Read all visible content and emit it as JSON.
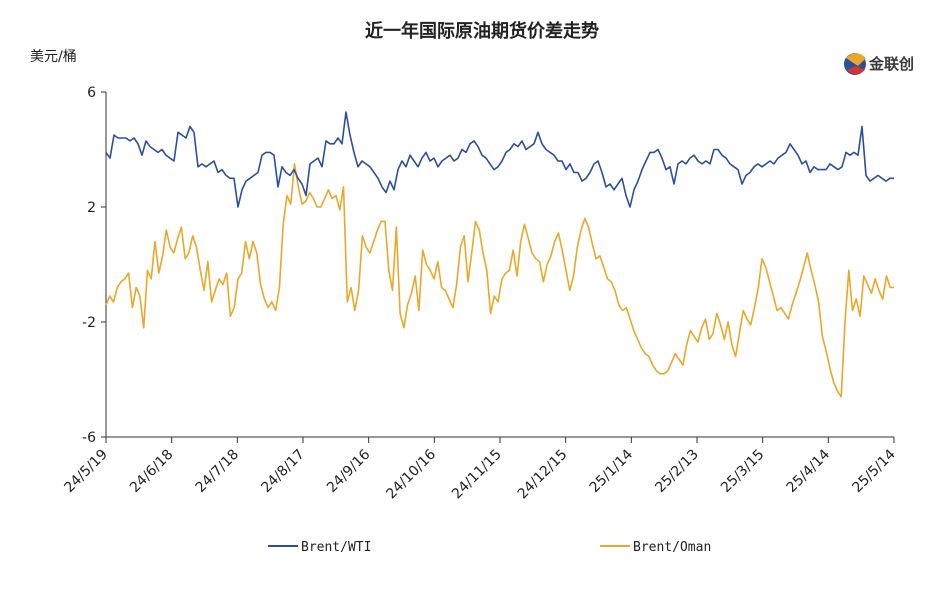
{
  "chart_data": {
    "type": "line",
    "title": "近一年国际原油期货价差走势",
    "ylabel": "美元/桶",
    "xlabel": "",
    "ylim": [
      -6,
      6
    ],
    "yticks": [
      "-6",
      "-2",
      "2",
      "6"
    ],
    "ytick_values": [
      -6,
      -2,
      2,
      6
    ],
    "x_tick_labels": [
      "24/5/19",
      "24/6/18",
      "24/7/18",
      "24/8/17",
      "24/9/16",
      "24/10/16",
      "24/11/15",
      "24/12/15",
      "25/1/14",
      "25/2/13",
      "25/3/15",
      "25/4/14",
      "25/5/14"
    ],
    "grid": false,
    "legend_position": "bottom",
    "logo": "金联创",
    "colors": {
      "Brent/WTI": "#2a4f9e",
      "Brent/Oman": "#e9a82b"
    },
    "series": [
      {
        "name": "Brent/WTI",
        "values": [
          3.9,
          3.7,
          4.5,
          4.4,
          4.4,
          4.4,
          4.3,
          4.4,
          4.2,
          3.8,
          4.3,
          4.1,
          4.0,
          3.9,
          4.0,
          3.8,
          3.7,
          3.6,
          4.6,
          4.5,
          4.4,
          4.8,
          4.6,
          3.4,
          3.5,
          3.4,
          3.5,
          3.6,
          3.2,
          3.3,
          3.1,
          3.0,
          3.0,
          2.0,
          2.6,
          2.9,
          3.0,
          3.1,
          3.2,
          3.8,
          3.9,
          3.9,
          3.8,
          2.7,
          3.4,
          3.2,
          3.1,
          3.3,
          3.0,
          2.8,
          2.4,
          3.5,
          3.6,
          3.7,
          3.4,
          4.3,
          4.2,
          4.2,
          4.4,
          4.2,
          5.3,
          4.5,
          3.9,
          3.4,
          3.6,
          3.5,
          3.4,
          3.2,
          3.0,
          2.7,
          2.5,
          2.9,
          2.6,
          3.3,
          3.6,
          3.4,
          3.8,
          3.6,
          3.4,
          3.7,
          3.9,
          3.6,
          3.7,
          3.4,
          3.6,
          3.7,
          3.8,
          3.6,
          3.7,
          4.0,
          3.9,
          4.2,
          4.3,
          4.1,
          3.8,
          3.7,
          3.5,
          3.3,
          3.4,
          3.6,
          3.9,
          4.0,
          4.2,
          4.1,
          4.3,
          4.0,
          4.1,
          4.2,
          4.6,
          4.2,
          4.0,
          3.9,
          3.8,
          3.6,
          3.6,
          3.3,
          3.5,
          3.2,
          3.2,
          2.9,
          3.0,
          3.2,
          3.5,
          3.6,
          3.2,
          2.7,
          2.8,
          2.6,
          2.8,
          3.0,
          2.4,
          2.0,
          2.6,
          2.9,
          3.3,
          3.6,
          3.9,
          3.9,
          4.0,
          3.7,
          3.3,
          3.4,
          2.8,
          3.5,
          3.6,
          3.5,
          3.7,
          3.8,
          3.6,
          3.5,
          3.6,
          3.5,
          4.0,
          4.0,
          3.8,
          3.7,
          3.5,
          3.4,
          3.3,
          2.8,
          3.1,
          3.2,
          3.4,
          3.5,
          3.4,
          3.5,
          3.6,
          3.5,
          3.7,
          3.8,
          3.9,
          4.2,
          4.0,
          3.8,
          3.5,
          3.6,
          3.2,
          3.4,
          3.3,
          3.3,
          3.3,
          3.5,
          3.4,
          3.3,
          3.4,
          3.9,
          3.8,
          3.9,
          3.8,
          4.8,
          3.1,
          2.9,
          3.0,
          3.1,
          3.0,
          2.9,
          3.0,
          3.0
        ]
      },
      {
        "name": "Brent/Oman",
        "values": [
          -1.4,
          -1.1,
          -1.3,
          -0.8,
          -0.6,
          -0.5,
          -0.3,
          -1.5,
          -0.8,
          -1.1,
          -2.2,
          -0.2,
          -0.5,
          0.8,
          -0.3,
          0.3,
          1.2,
          0.6,
          0.4,
          0.9,
          1.3,
          0.2,
          0.4,
          1.0,
          0.6,
          -0.2,
          -0.9,
          0.1,
          -1.3,
          -0.9,
          -0.5,
          -0.7,
          -0.3,
          -1.8,
          -1.5,
          -0.5,
          -0.3,
          0.8,
          0.2,
          0.8,
          0.4,
          -0.7,
          -1.2,
          -1.5,
          -1.3,
          -1.6,
          -0.8,
          1.4,
          2.4,
          2.1,
          3.5,
          2.7,
          2.1,
          2.2,
          2.5,
          2.3,
          2.0,
          2.0,
          2.3,
          2.6,
          2.3,
          2.4,
          1.9,
          2.7,
          -1.3,
          -0.8,
          -1.6,
          -0.9,
          1.0,
          0.6,
          0.4,
          0.8,
          1.2,
          1.5,
          1.5,
          -0.2,
          -0.9,
          1.3,
          -1.7,
          -2.2,
          -1.4,
          -1.0,
          -0.4,
          -1.6,
          0.5,
          0.0,
          -0.2,
          -0.5,
          0.1,
          -0.8,
          -0.9,
          -1.2,
          -1.5,
          -0.7,
          0.6,
          1.0,
          -0.6,
          0.4,
          1.5,
          1.2,
          0.4,
          -0.2,
          -1.7,
          -1.1,
          -1.3,
          -0.5,
          -0.3,
          -0.2,
          0.5,
          -0.4,
          0.8,
          1.4,
          0.9,
          0.4,
          0.2,
          0.1,
          -0.6,
          0.0,
          0.3,
          0.8,
          1.1,
          0.5,
          -0.2,
          -0.9,
          -0.4,
          0.6,
          1.2,
          1.6,
          1.3,
          0.7,
          0.2,
          0.3,
          -0.1,
          -0.5,
          -0.6,
          -0.9,
          -1.4,
          -1.6,
          -1.5,
          -1.9,
          -2.3,
          -2.6,
          -2.9,
          -3.1,
          -3.2,
          -3.5,
          -3.7,
          -3.8,
          -3.8,
          -3.7,
          -3.4,
          -3.1,
          -3.3,
          -3.5,
          -2.8,
          -2.3,
          -2.5,
          -2.7,
          -2.2,
          -1.9,
          -2.6,
          -2.4,
          -1.7,
          -2.1,
          -2.6,
          -2.0,
          -2.8,
          -3.2,
          -2.4,
          -1.6,
          -1.9,
          -2.1,
          -1.5,
          -0.8,
          0.2,
          -0.1,
          -0.6,
          -1.1,
          -1.6,
          -1.5,
          -1.7,
          -1.9,
          -1.4,
          -1.0,
          -0.6,
          -0.1,
          0.4,
          -0.2,
          -0.7,
          -1.3,
          -2.5,
          -3.0,
          -3.6,
          -4.1,
          -4.4,
          -4.6,
          -2.0,
          -0.2,
          -1.6,
          -1.2,
          -1.8,
          -0.4,
          -0.7,
          -1.0,
          -0.5,
          -0.9,
          -1.2,
          -0.4,
          -0.8,
          -0.8
        ]
      }
    ]
  }
}
